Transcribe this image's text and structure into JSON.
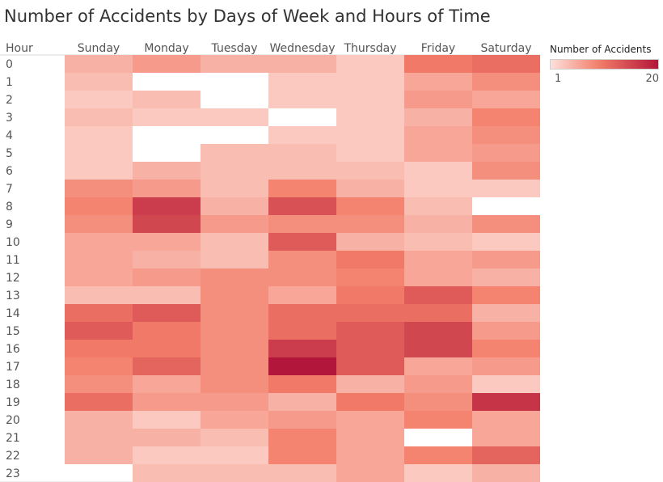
{
  "chart_data": {
    "type": "heatmap",
    "title": "Number of Accidents by Days of Week and Hours of Time",
    "row_header": "Hour",
    "columns": [
      "Sunday",
      "Monday",
      "Tuesday",
      "Wednesday",
      "Thursday",
      "Friday",
      "Saturday"
    ],
    "rows": [
      "0",
      "1",
      "2",
      "3",
      "4",
      "5",
      "6",
      "7",
      "8",
      "9",
      "10",
      "11",
      "12",
      "13",
      "14",
      "15",
      "16",
      "17",
      "18",
      "19",
      "20",
      "21",
      "22",
      "23"
    ],
    "values": [
      [
        5,
        7,
        5,
        5,
        3,
        10,
        11
      ],
      [
        4,
        null,
        null,
        3,
        3,
        6,
        8
      ],
      [
        3,
        4,
        null,
        3,
        3,
        7,
        6
      ],
      [
        4,
        3,
        3,
        null,
        3,
        5,
        9
      ],
      [
        3,
        null,
        null,
        3,
        3,
        6,
        8
      ],
      [
        3,
        null,
        4,
        4,
        3,
        6,
        7
      ],
      [
        3,
        5,
        4,
        4,
        4,
        3,
        8
      ],
      [
        8,
        7,
        4,
        9,
        5,
        3,
        3
      ],
      [
        9,
        16,
        5,
        14,
        9,
        4,
        null
      ],
      [
        8,
        15,
        7,
        8,
        8,
        5,
        8
      ],
      [
        6,
        6,
        4,
        13,
        5,
        4,
        3
      ],
      [
        6,
        5,
        4,
        8,
        10,
        6,
        7
      ],
      [
        6,
        7,
        8,
        8,
        9,
        6,
        5
      ],
      [
        4,
        4,
        8,
        6,
        10,
        13,
        9
      ],
      [
        11,
        13,
        8,
        11,
        11,
        11,
        5
      ],
      [
        13,
        10,
        8,
        11,
        13,
        15,
        7
      ],
      [
        10,
        10,
        8,
        16,
        13,
        15,
        9
      ],
      [
        9,
        12,
        8,
        20,
        13,
        6,
        7
      ],
      [
        8,
        6,
        8,
        10,
        5,
        7,
        3
      ],
      [
        11,
        7,
        7,
        5,
        10,
        8,
        17
      ],
      [
        5,
        3,
        6,
        7,
        6,
        9,
        6
      ],
      [
        5,
        5,
        4,
        9,
        6,
        null,
        6
      ],
      [
        5,
        3,
        3,
        9,
        6,
        9,
        12
      ],
      [
        null,
        4,
        4,
        4,
        6,
        3,
        5
      ]
    ],
    "color_scale": {
      "title": "Number of Accidents",
      "min": 1,
      "max": 20,
      "min_label": "1",
      "max_label": "20",
      "low_color": "#fde0da",
      "high_color": "#b2163a"
    }
  }
}
